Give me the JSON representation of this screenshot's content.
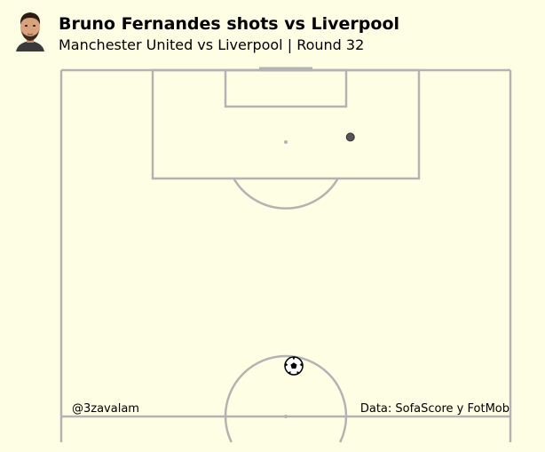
{
  "header": {
    "title": "Bruno Fernandes shots vs Liverpool",
    "subtitle": "Manchester United vs Liverpool | Round 32"
  },
  "footer": {
    "author": "@3zavalam",
    "source": "Data: SofaScore y FotMob"
  },
  "icons": {
    "avatar": "player-photo-icon",
    "ball": "football-icon"
  },
  "colors": {
    "background": "#fefee4",
    "pitch_lines": "#b3b3b3",
    "shot_marker": "#555555"
  },
  "chart_data": {
    "type": "scatter",
    "title": "Bruno Fernandes shots vs Liverpool",
    "subtitle": "Manchester United vs Liverpool | Round 32",
    "pitch": "half-vertical",
    "pitch_length": 120,
    "pitch_width": 80,
    "grid": false,
    "series": [
      {
        "values": [
          {
            "x": 108.4,
            "y": 51.5
          }
        ]
      }
    ]
  }
}
